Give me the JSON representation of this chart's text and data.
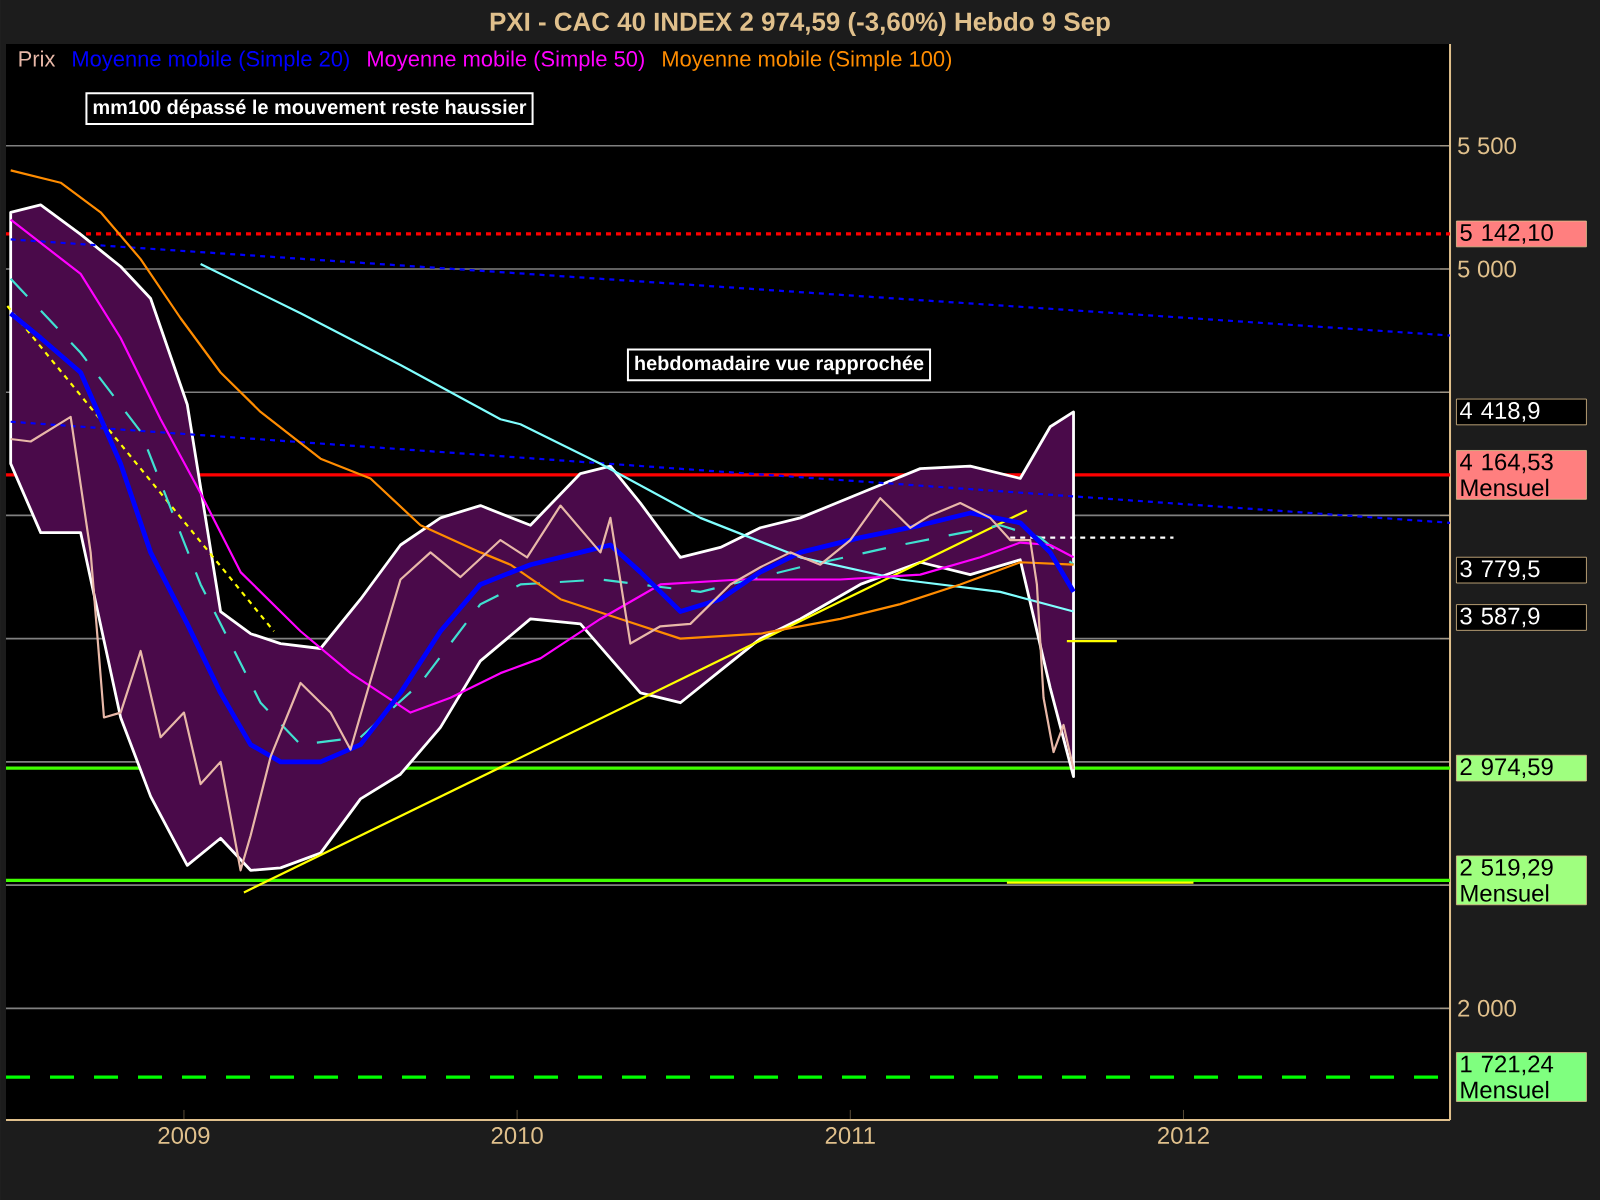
{
  "chart_data": {
    "type": "line",
    "title": "PXI - CAC 40 INDEX    2 974,59 (-3,60%)    Hebdo  9 Sep",
    "xlim": [
      2008.466,
      2012.8
    ],
    "ylim": [
      1547,
      5913
    ],
    "xticks": [
      {
        "value": 2009,
        "label": "2009"
      },
      {
        "value": 2010,
        "label": "2010"
      },
      {
        "value": 2011,
        "label": "2011"
      },
      {
        "value": 2012,
        "label": "2012"
      }
    ],
    "yticks": [
      {
        "value": 2000,
        "label": "2 000"
      },
      {
        "value": 2500,
        "label": null
      },
      {
        "value": 3000,
        "label": null
      },
      {
        "value": 3500,
        "label": null
      },
      {
        "value": 4000,
        "label": null
      },
      {
        "value": 4500,
        "label": null
      },
      {
        "value": 5000,
        "label": "5 000"
      },
      {
        "value": 5500,
        "label": "5 500"
      }
    ],
    "grid": "y",
    "legend": "top left",
    "marker": "none",
    "series": [
      {
        "name": "Prix",
        "color": "#e8b8a8",
        "x": [
          2008.48,
          2008.54,
          2008.66,
          2008.72,
          2008.76,
          2008.81,
          2008.87,
          2008.93,
          2009.0,
          2009.05,
          2009.11,
          2009.17,
          2009.2,
          2009.26,
          2009.35,
          2009.44,
          2009.5,
          2009.56,
          2009.65,
          2009.74,
          2009.83,
          2009.95,
          2010.03,
          2010.13,
          2010.25,
          2010.28,
          2010.34,
          2010.43,
          2010.52,
          2010.64,
          2010.73,
          2010.82,
          2010.91,
          2011.0,
          2011.09,
          2011.18,
          2011.24,
          2011.33,
          2011.42,
          2011.48,
          2011.54,
          2011.56,
          2011.58,
          2011.61,
          2011.64,
          2011.67
        ],
        "values": [
          4310,
          4300,
          4400,
          3850,
          3180,
          3200,
          3450,
          3100,
          3200,
          2910,
          3000,
          2560,
          2700,
          3020,
          3320,
          3200,
          3050,
          3330,
          3740,
          3850,
          3750,
          3900,
          3830,
          4040,
          3850,
          3990,
          3480,
          3550,
          3560,
          3720,
          3790,
          3850,
          3800,
          3900,
          4070,
          3950,
          4000,
          4050,
          3990,
          3900,
          3900,
          3720,
          3260,
          3040,
          3150,
          2970
        ]
      },
      {
        "name": "Moyenne mobile (Simple 20)",
        "color": "#0000ff",
        "x": [
          2008.48,
          2008.57,
          2008.69,
          2008.81,
          2008.9,
          2009.01,
          2009.11,
          2009.2,
          2009.29,
          2009.41,
          2009.53,
          2009.65,
          2009.77,
          2009.89,
          2010.04,
          2010.19,
          2010.28,
          2010.37,
          2010.49,
          2010.61,
          2010.73,
          2010.85,
          2011.03,
          2011.21,
          2011.36,
          2011.51,
          2011.6,
          2011.67
        ],
        "values": [
          4820,
          4720,
          4580,
          4210,
          3850,
          3560,
          3280,
          3070,
          3000,
          3000,
          3070,
          3280,
          3530,
          3720,
          3800,
          3850,
          3880,
          3770,
          3610,
          3660,
          3770,
          3850,
          3910,
          3960,
          4010,
          3970,
          3850,
          3690
        ],
        "upper": [
          5230,
          5260,
          5140,
          5010,
          4880,
          4450,
          3610,
          3520,
          3480,
          3460,
          3660,
          3880,
          3990,
          4040,
          3960,
          4170,
          4200,
          4050,
          3830,
          3870,
          3950,
          3990,
          4090,
          4190,
          4200,
          4150,
          4360,
          4420
        ],
        "lower": [
          4210,
          3930,
          3930,
          3180,
          2860,
          2580,
          2690,
          2560,
          2570,
          2630,
          2850,
          2950,
          3140,
          3410,
          3580,
          3560,
          3420,
          3280,
          3240,
          3370,
          3500,
          3580,
          3720,
          3810,
          3760,
          3820,
          3300,
          2940
        ]
      },
      {
        "name": "Moyenne mobile (Simple 50)",
        "color": "#ff00ff",
        "x": [
          2008.48,
          2008.69,
          2008.81,
          2008.93,
          2009.05,
          2009.17,
          2009.35,
          2009.5,
          2009.68,
          2009.8,
          2009.95,
          2010.07,
          2010.25,
          2010.43,
          2010.67,
          2010.97,
          2011.21,
          2011.39,
          2011.51,
          2011.6,
          2011.67
        ],
        "values": [
          5200,
          4980,
          4720,
          4390,
          4090,
          3770,
          3530,
          3360,
          3200,
          3260,
          3360,
          3420,
          3580,
          3720,
          3740,
          3740,
          3760,
          3830,
          3890,
          3880,
          3830
        ]
      },
      {
        "name": "Moyenne mobile (Simple 100)",
        "color": "#ff8c00",
        "x": [
          2008.48,
          2008.63,
          2008.75,
          2008.87,
          2008.99,
          2009.11,
          2009.23,
          2009.41,
          2009.56,
          2009.71,
          2009.89,
          2009.98,
          2010.13,
          2010.31,
          2010.49,
          2010.73,
          2010.97,
          2011.15,
          2011.33,
          2011.51,
          2011.67
        ],
        "values": [
          5400,
          5350,
          5230,
          5040,
          4800,
          4580,
          4420,
          4230,
          4150,
          3960,
          3850,
          3800,
          3660,
          3580,
          3500,
          3520,
          3580,
          3640,
          3720,
          3810,
          3800
        ]
      },
      {
        "color": "#80ffff",
        "x": [
          2009.05,
          2009.35,
          2009.65,
          2009.95,
          2010.01,
          2010.25,
          2010.55,
          2010.85,
          2011.15,
          2011.45,
          2011.67
        ],
        "values": [
          5020,
          4820,
          4610,
          4390,
          4370,
          4210,
          3990,
          3830,
          3740,
          3690,
          3610
        ]
      },
      {
        "color": "#40e0d0",
        "line_style": "dashed",
        "x": [
          2008.48,
          2008.69,
          2008.87,
          2009.05,
          2009.23,
          2009.35,
          2009.53,
          2009.71,
          2009.89,
          2010.01,
          2010.25,
          2010.55,
          2010.85,
          2011.15,
          2011.45,
          2011.57,
          2011.67
        ],
        "values": [
          4960,
          4660,
          4340,
          3720,
          3240,
          3070,
          3100,
          3320,
          3640,
          3720,
          3740,
          3690,
          3790,
          3880,
          3960,
          3910,
          3800
        ]
      },
      {
        "color": "#0000ff",
        "line_style": "dotted",
        "x": [
          2008.48,
          2012.8
        ],
        "values": [
          5120,
          4730
        ]
      },
      {
        "color": "#0000ff",
        "line_style": "dotted",
        "x": [
          2008.48,
          2012.8
        ],
        "values": [
          4380,
          3970
        ]
      },
      {
        "color": "#ffff00",
        "x": [
          2009.18,
          2011.53
        ],
        "values": [
          2470,
          4020
        ]
      },
      {
        "color": "#ffff00",
        "line_style": "dotted",
        "x": [
          2008.47,
          2009.27
        ],
        "values": [
          4850,
          3530
        ]
      },
      {
        "color": "#ffffff",
        "line_style": "dotted",
        "x": [
          2011.48,
          2011.97
        ],
        "values": [
          3910,
          3910
        ]
      },
      {
        "color": "#ffff00",
        "x": [
          2011.65,
          2011.8
        ],
        "values": [
          3490,
          3490
        ]
      },
      {
        "color": "#ffff00",
        "x": [
          2011.47,
          2012.03
        ],
        "values": [
          2510,
          2510
        ]
      }
    ],
    "ref_lines": [
      {
        "axis": "y",
        "value": 5142.1,
        "label": "5 142,10",
        "color": "#ff0000",
        "line_style": "dotted"
      },
      {
        "axis": "y",
        "value": 4164.53,
        "label": "4 164,53 Mensuel",
        "color": "#ff0000",
        "line_style": "solid"
      },
      {
        "axis": "y",
        "value": 2974.59,
        "label": "2 974,59",
        "color": "#40ff00",
        "line_style": "solid"
      },
      {
        "axis": "y",
        "value": 2519.29,
        "label": "2 519,29 Mensuel",
        "color": "#40ff00",
        "line_style": "solid"
      },
      {
        "axis": "y",
        "value": 1721.24,
        "label": "1 721,24 Mensuel",
        "color": "#00ff00",
        "line_style": "dashed"
      }
    ],
    "annotations": [
      "mm100 dépassé  le mouvement reste haussier",
      "hebdomadaire vue rapprochée",
      "4 418,9",
      "3 779,5",
      "3 587,9"
    ]
  }
}
